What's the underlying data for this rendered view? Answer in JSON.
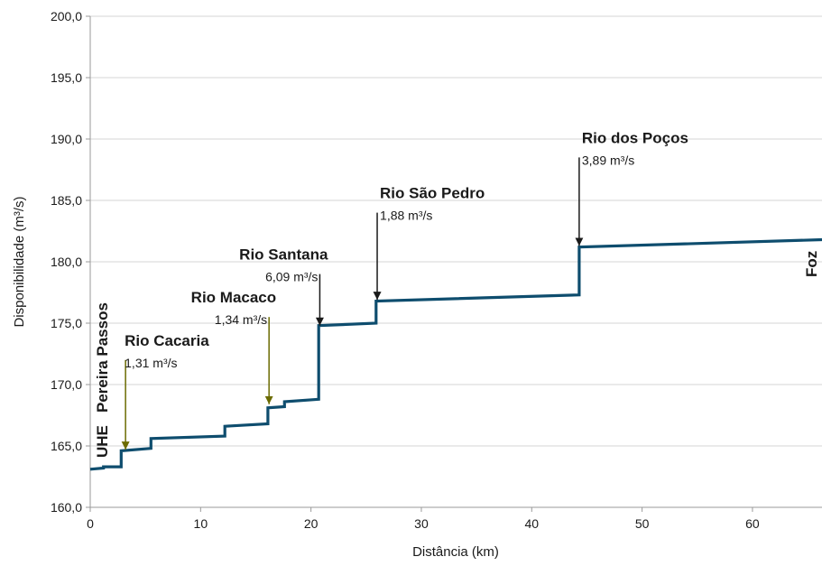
{
  "chart_data": {
    "type": "line",
    "title": "",
    "xlabel": "Distância (km)",
    "ylabel": "Disponibilidade (m³/s)",
    "xlim": [
      0,
      66.3
    ],
    "ylim": [
      160,
      200
    ],
    "grid": "horizontal",
    "x_ticks": [
      "0",
      "10",
      "20",
      "30",
      "40",
      "50",
      "60"
    ],
    "y_ticks": [
      "160,0",
      "165,0",
      "170,0",
      "175,0",
      "180,0",
      "185,0",
      "190,0",
      "195,0",
      "200,0"
    ],
    "series": [
      {
        "color": "#0e4d6e",
        "x": [
          0,
          1.2,
          1.2,
          2.8,
          2.8,
          5.5,
          5.5,
          12.2,
          12.2,
          16.1,
          16.1,
          17.6,
          17.6,
          20.7,
          20.7,
          25.9,
          25.9,
          44.3,
          44.3,
          66.3
        ],
        "y": [
          163.1,
          163.2,
          163.3,
          163.3,
          164.6,
          164.8,
          165.6,
          165.8,
          166.6,
          166.8,
          168.1,
          168.2,
          168.6,
          168.8,
          174.8,
          175.0,
          176.8,
          177.3,
          181.2,
          181.8
        ]
      }
    ],
    "annotations": [
      {
        "name": "Rio Cacaria",
        "value": "1,31",
        "unit": "m³/s",
        "x": 3.2,
        "arrow_from": 172.0,
        "arrow_to": 164.7,
        "color": "#6b6b00"
      },
      {
        "name": "Rio Macaco",
        "value": "1,34",
        "unit": "m³/s",
        "x": 16.2,
        "arrow_from": 175.5,
        "arrow_to": 168.4,
        "color": "#6b6b00"
      },
      {
        "name": "Rio Santana",
        "value": "6,09",
        "unit": "m³/s",
        "x": 20.8,
        "arrow_from": 179.0,
        "arrow_to": 174.8,
        "color": "#1a1a1a"
      },
      {
        "name": "Rio São Pedro",
        "value": "1,88",
        "unit": "m³/s",
        "x": 26.0,
        "arrow_from": 184.0,
        "arrow_to": 176.9,
        "color": "#1a1a1a"
      },
      {
        "name": "Rio dos Poços",
        "value": "3,89",
        "unit": "m³/s",
        "x": 44.3,
        "arrow_from": 188.5,
        "arrow_to": 181.3,
        "color": "#1a1a1a"
      }
    ],
    "side_labels": {
      "start_line1": "UHE",
      "start_line2": "Pereira Passos",
      "end": "Foz"
    }
  }
}
